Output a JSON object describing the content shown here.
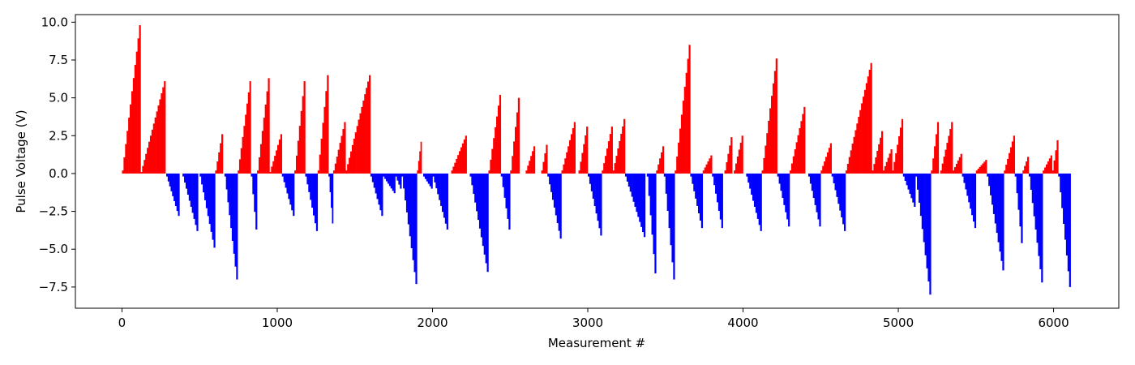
{
  "chart_data": {
    "type": "bar",
    "title": "",
    "xlabel": "Measurement #",
    "ylabel": "Pulse Voltage (V)",
    "xlim": [
      -300,
      6420
    ],
    "ylim": [
      -8.9,
      10.5
    ],
    "x_ticks": [
      0,
      1000,
      2000,
      3000,
      4000,
      5000,
      6000
    ],
    "x_tick_labels": [
      "0",
      "1000",
      "2000",
      "3000",
      "4000",
      "5000",
      "6000"
    ],
    "y_ticks": [
      -7.5,
      -5.0,
      -2.5,
      0.0,
      2.5,
      5.0,
      7.5,
      10.0
    ],
    "y_tick_labels": [
      "−7.5",
      "−5.0",
      "−2.5",
      "0.0",
      "2.5",
      "5.0",
      "7.5",
      "10.0"
    ],
    "grid": false,
    "legend": "none",
    "colors": {
      "positive": "#ff0000",
      "negative": "#0000ff"
    },
    "series": [
      {
        "description_of_encoding": "sawtooth ramps: each segment rises linearly from start_v to end_v between x_start and x_end (measurement index), then resets",
        "segments": [
          {
            "x_start": 0,
            "x_end": 120,
            "start_v": 0.2,
            "end_v": 9.8
          },
          {
            "x_start": 120,
            "x_end": 280,
            "start_v": 0.1,
            "end_v": 6.1
          },
          {
            "x_start": 285,
            "x_end": 370,
            "start_v": -0.2,
            "end_v": -2.8
          },
          {
            "x_start": 390,
            "x_end": 490,
            "start_v": -0.2,
            "end_v": -3.8
          },
          {
            "x_start": 500,
            "x_end": 600,
            "start_v": -0.2,
            "end_v": -4.9
          },
          {
            "x_start": 600,
            "x_end": 650,
            "start_v": 0.2,
            "end_v": 2.6
          },
          {
            "x_start": 660,
            "x_end": 745,
            "start_v": -0.2,
            "end_v": -7.0
          },
          {
            "x_start": 745,
            "x_end": 830,
            "start_v": 0.2,
            "end_v": 6.1
          },
          {
            "x_start": 830,
            "x_end": 870,
            "start_v": -0.2,
            "end_v": -3.7
          },
          {
            "x_start": 870,
            "x_end": 950,
            "start_v": 0.2,
            "end_v": 6.3
          },
          {
            "x_start": 950,
            "x_end": 1030,
            "start_v": 0.1,
            "end_v": 2.6
          },
          {
            "x_start": 1030,
            "x_end": 1110,
            "start_v": -0.2,
            "end_v": -2.8
          },
          {
            "x_start": 1110,
            "x_end": 1180,
            "start_v": 0.2,
            "end_v": 6.1
          },
          {
            "x_start": 1180,
            "x_end": 1260,
            "start_v": -0.2,
            "end_v": -3.8
          },
          {
            "x_start": 1260,
            "x_end": 1330,
            "start_v": 0.2,
            "end_v": 6.5
          },
          {
            "x_start": 1330,
            "x_end": 1360,
            "start_v": -0.2,
            "end_v": -3.3
          },
          {
            "x_start": 1360,
            "x_end": 1440,
            "start_v": 0.2,
            "end_v": 3.4
          },
          {
            "x_start": 1440,
            "x_end": 1600,
            "start_v": 0.2,
            "end_v": 6.5
          },
          {
            "x_start": 1600,
            "x_end": 1680,
            "start_v": -0.2,
            "end_v": -2.8
          },
          {
            "x_start": 1680,
            "x_end": 1760,
            "start_v": -0.2,
            "end_v": -1.3
          },
          {
            "x_start": 1760,
            "x_end": 1800,
            "start_v": -0.2,
            "end_v": -1.0
          },
          {
            "x_start": 1800,
            "x_end": 1900,
            "start_v": -0.2,
            "end_v": -7.3
          },
          {
            "x_start": 1900,
            "x_end": 1930,
            "start_v": 0.2,
            "end_v": 2.1
          },
          {
            "x_start": 1940,
            "x_end": 2000,
            "start_v": -0.2,
            "end_v": -1.0
          },
          {
            "x_start": 2000,
            "x_end": 2100,
            "start_v": -0.2,
            "end_v": -3.7
          },
          {
            "x_start": 2120,
            "x_end": 2220,
            "start_v": 0.2,
            "end_v": 2.5
          },
          {
            "x_start": 2240,
            "x_end": 2360,
            "start_v": -0.2,
            "end_v": -6.5
          },
          {
            "x_start": 2360,
            "x_end": 2440,
            "start_v": 0.2,
            "end_v": 5.2
          },
          {
            "x_start": 2440,
            "x_end": 2500,
            "start_v": -0.2,
            "end_v": -3.7
          },
          {
            "x_start": 2500,
            "x_end": 2560,
            "start_v": 0.2,
            "end_v": 5.0
          },
          {
            "x_start": 2600,
            "x_end": 2660,
            "start_v": 0.2,
            "end_v": 1.8
          },
          {
            "x_start": 2700,
            "x_end": 2740,
            "start_v": 0.2,
            "end_v": 1.9
          },
          {
            "x_start": 2740,
            "x_end": 2830,
            "start_v": -0.2,
            "end_v": -4.3
          },
          {
            "x_start": 2830,
            "x_end": 2920,
            "start_v": 0.2,
            "end_v": 3.4
          },
          {
            "x_start": 2940,
            "x_end": 3000,
            "start_v": 0.2,
            "end_v": 3.1
          },
          {
            "x_start": 3000,
            "x_end": 3090,
            "start_v": -0.2,
            "end_v": -4.1
          },
          {
            "x_start": 3090,
            "x_end": 3160,
            "start_v": 0.2,
            "end_v": 3.1
          },
          {
            "x_start": 3160,
            "x_end": 3240,
            "start_v": 0.2,
            "end_v": 3.6
          },
          {
            "x_start": 3240,
            "x_end": 3370,
            "start_v": -0.2,
            "end_v": -4.2
          },
          {
            "x_start": 3380,
            "x_end": 3440,
            "start_v": -0.2,
            "end_v": -6.6
          },
          {
            "x_start": 3440,
            "x_end": 3490,
            "start_v": 0.2,
            "end_v": 1.8
          },
          {
            "x_start": 3490,
            "x_end": 3560,
            "start_v": -0.2,
            "end_v": -7.0
          },
          {
            "x_start": 3560,
            "x_end": 3660,
            "start_v": 0.2,
            "end_v": 8.5
          },
          {
            "x_start": 3660,
            "x_end": 3740,
            "start_v": -0.2,
            "end_v": -3.6
          },
          {
            "x_start": 3740,
            "x_end": 3800,
            "start_v": 0.2,
            "end_v": 1.2
          },
          {
            "x_start": 3800,
            "x_end": 3870,
            "start_v": -0.2,
            "end_v": -3.6
          },
          {
            "x_start": 3880,
            "x_end": 3930,
            "start_v": 0.2,
            "end_v": 2.4
          },
          {
            "x_start": 3940,
            "x_end": 4000,
            "start_v": 0.2,
            "end_v": 2.5
          },
          {
            "x_start": 4020,
            "x_end": 4120,
            "start_v": -0.2,
            "end_v": -3.8
          },
          {
            "x_start": 4120,
            "x_end": 4220,
            "start_v": 0.2,
            "end_v": 7.6
          },
          {
            "x_start": 4220,
            "x_end": 4300,
            "start_v": -0.2,
            "end_v": -3.5
          },
          {
            "x_start": 4300,
            "x_end": 4400,
            "start_v": 0.2,
            "end_v": 4.4
          },
          {
            "x_start": 4420,
            "x_end": 4500,
            "start_v": -0.2,
            "end_v": -3.5
          },
          {
            "x_start": 4500,
            "x_end": 4570,
            "start_v": 0.2,
            "end_v": 2.0
          },
          {
            "x_start": 4570,
            "x_end": 4660,
            "start_v": -0.2,
            "end_v": -3.8
          },
          {
            "x_start": 4660,
            "x_end": 4830,
            "start_v": 0.2,
            "end_v": 7.3
          },
          {
            "x_start": 4830,
            "x_end": 4900,
            "start_v": 0.2,
            "end_v": 2.8
          },
          {
            "x_start": 4900,
            "x_end": 4960,
            "start_v": 0.2,
            "end_v": 1.6
          },
          {
            "x_start": 4960,
            "x_end": 5030,
            "start_v": 0.2,
            "end_v": 3.6
          },
          {
            "x_start": 5030,
            "x_end": 5110,
            "start_v": -0.2,
            "end_v": -2.2
          },
          {
            "x_start": 5110,
            "x_end": 5210,
            "start_v": -0.2,
            "end_v": -8.0
          },
          {
            "x_start": 5210,
            "x_end": 5260,
            "start_v": 0.2,
            "end_v": 3.4
          },
          {
            "x_start": 5270,
            "x_end": 5350,
            "start_v": 0.2,
            "end_v": 3.4
          },
          {
            "x_start": 5350,
            "x_end": 5410,
            "start_v": 0.2,
            "end_v": 1.3
          },
          {
            "x_start": 5410,
            "x_end": 5500,
            "start_v": -0.2,
            "end_v": -3.6
          },
          {
            "x_start": 5500,
            "x_end": 5570,
            "start_v": 0.2,
            "end_v": 0.9
          },
          {
            "x_start": 5570,
            "x_end": 5680,
            "start_v": -0.2,
            "end_v": -6.4
          },
          {
            "x_start": 5680,
            "x_end": 5750,
            "start_v": 0.2,
            "end_v": 2.5
          },
          {
            "x_start": 5750,
            "x_end": 5800,
            "start_v": -0.2,
            "end_v": -4.6
          },
          {
            "x_start": 5800,
            "x_end": 5840,
            "start_v": 0.2,
            "end_v": 1.1
          },
          {
            "x_start": 5840,
            "x_end": 5930,
            "start_v": -0.2,
            "end_v": -7.2
          },
          {
            "x_start": 5930,
            "x_end": 5990,
            "start_v": 0.2,
            "end_v": 1.2
          },
          {
            "x_start": 5990,
            "x_end": 6030,
            "start_v": 0.2,
            "end_v": 2.2
          },
          {
            "x_start": 6030,
            "x_end": 6110,
            "start_v": -0.2,
            "end_v": -7.5
          }
        ]
      }
    ]
  }
}
